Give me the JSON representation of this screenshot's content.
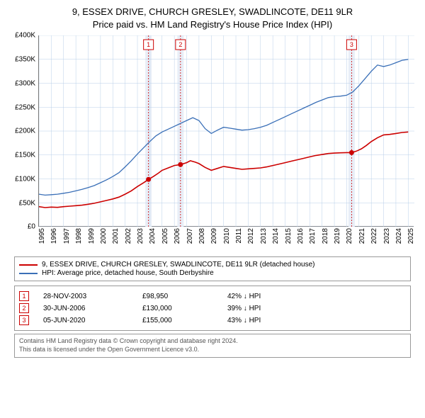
{
  "title_line1": "9, ESSEX DRIVE, CHURCH GRESLEY, SWADLINCOTE, DE11 9LR",
  "title_line2": "Price paid vs. HM Land Registry's House Price Index (HPI)",
  "chart": {
    "type": "line",
    "background_color": "#ffffff",
    "grid_color": "#b8cfe8",
    "grid_width": 0.5,
    "x_range": [
      1995,
      2025.5
    ],
    "y_range": [
      0,
      400000
    ],
    "y_ticks": [
      {
        "v": 0,
        "label": "£0"
      },
      {
        "v": 50000,
        "label": "£50K"
      },
      {
        "v": 100000,
        "label": "£100K"
      },
      {
        "v": 150000,
        "label": "£150K"
      },
      {
        "v": 200000,
        "label": "£200K"
      },
      {
        "v": 250000,
        "label": "£250K"
      },
      {
        "v": 300000,
        "label": "£300K"
      },
      {
        "v": 350000,
        "label": "£350K"
      },
      {
        "v": 400000,
        "label": "£400K"
      }
    ],
    "x_ticks": [
      1995,
      1996,
      1997,
      1998,
      1999,
      2000,
      2001,
      2002,
      2003,
      2004,
      2005,
      2006,
      2007,
      2008,
      2009,
      2010,
      2011,
      2012,
      2013,
      2014,
      2015,
      2016,
      2017,
      2018,
      2019,
      2020,
      2021,
      2022,
      2023,
      2024,
      2025
    ],
    "markers": [
      {
        "n": "1",
        "x": 2003.9,
        "y": 98950,
        "color": "#cc0000"
      },
      {
        "n": "2",
        "x": 2006.5,
        "y": 130000,
        "color": "#cc0000"
      },
      {
        "n": "3",
        "x": 2020.4,
        "y": 155000,
        "color": "#cc0000"
      }
    ],
    "marker_band_color": "#e8eef7",
    "marker_line_color": "#cc0000",
    "series": [
      {
        "name": "property",
        "color": "#cc0000",
        "width": 1.6,
        "points": [
          [
            1995.0,
            42000
          ],
          [
            1995.5,
            40000
          ],
          [
            1996.0,
            41000
          ],
          [
            1996.5,
            40500
          ],
          [
            1997.0,
            42000
          ],
          [
            1997.5,
            43000
          ],
          [
            1998.0,
            44000
          ],
          [
            1998.5,
            45000
          ],
          [
            1999.0,
            47000
          ],
          [
            1999.5,
            49000
          ],
          [
            2000.0,
            52000
          ],
          [
            2000.5,
            55000
          ],
          [
            2001.0,
            58000
          ],
          [
            2001.5,
            62000
          ],
          [
            2002.0,
            68000
          ],
          [
            2002.5,
            75000
          ],
          [
            2003.0,
            84000
          ],
          [
            2003.5,
            92000
          ],
          [
            2003.9,
            98950
          ],
          [
            2004.3,
            105000
          ],
          [
            2004.7,
            112000
          ],
          [
            2005.0,
            118000
          ],
          [
            2005.5,
            123000
          ],
          [
            2006.0,
            128000
          ],
          [
            2006.5,
            130000
          ],
          [
            2007.0,
            134000
          ],
          [
            2007.3,
            138000
          ],
          [
            2007.7,
            135000
          ],
          [
            2008.0,
            132000
          ],
          [
            2008.5,
            124000
          ],
          [
            2009.0,
            118000
          ],
          [
            2009.5,
            122000
          ],
          [
            2010.0,
            126000
          ],
          [
            2010.5,
            124000
          ],
          [
            2011.0,
            122000
          ],
          [
            2011.5,
            120000
          ],
          [
            2012.0,
            121000
          ],
          [
            2012.5,
            122000
          ],
          [
            2013.0,
            123000
          ],
          [
            2013.5,
            125000
          ],
          [
            2014.0,
            128000
          ],
          [
            2014.5,
            131000
          ],
          [
            2015.0,
            134000
          ],
          [
            2015.5,
            137000
          ],
          [
            2016.0,
            140000
          ],
          [
            2016.5,
            143000
          ],
          [
            2017.0,
            146000
          ],
          [
            2017.5,
            149000
          ],
          [
            2018.0,
            151000
          ],
          [
            2018.5,
            153000
          ],
          [
            2019.0,
            154000
          ],
          [
            2019.5,
            154500
          ],
          [
            2020.0,
            155000
          ],
          [
            2020.4,
            155000
          ],
          [
            2020.8,
            158000
          ],
          [
            2021.2,
            163000
          ],
          [
            2021.6,
            170000
          ],
          [
            2022.0,
            178000
          ],
          [
            2022.5,
            186000
          ],
          [
            2023.0,
            192000
          ],
          [
            2023.5,
            193000
          ],
          [
            2024.0,
            195000
          ],
          [
            2024.5,
            197000
          ],
          [
            2025.0,
            198000
          ]
        ]
      },
      {
        "name": "hpi",
        "color": "#3a6fb7",
        "width": 1.3,
        "points": [
          [
            1995.0,
            68000
          ],
          [
            1995.5,
            66000
          ],
          [
            1996.0,
            67000
          ],
          [
            1996.5,
            68000
          ],
          [
            1997.0,
            70000
          ],
          [
            1997.5,
            72000
          ],
          [
            1998.0,
            75000
          ],
          [
            1998.5,
            78000
          ],
          [
            1999.0,
            82000
          ],
          [
            1999.5,
            86000
          ],
          [
            2000.0,
            92000
          ],
          [
            2000.5,
            98000
          ],
          [
            2001.0,
            105000
          ],
          [
            2001.5,
            113000
          ],
          [
            2002.0,
            125000
          ],
          [
            2002.5,
            138000
          ],
          [
            2003.0,
            152000
          ],
          [
            2003.5,
            165000
          ],
          [
            2004.0,
            178000
          ],
          [
            2004.5,
            190000
          ],
          [
            2005.0,
            198000
          ],
          [
            2005.5,
            204000
          ],
          [
            2006.0,
            210000
          ],
          [
            2006.5,
            216000
          ],
          [
            2007.0,
            222000
          ],
          [
            2007.5,
            228000
          ],
          [
            2008.0,
            222000
          ],
          [
            2008.5,
            205000
          ],
          [
            2009.0,
            195000
          ],
          [
            2009.5,
            202000
          ],
          [
            2010.0,
            208000
          ],
          [
            2010.5,
            206000
          ],
          [
            2011.0,
            204000
          ],
          [
            2011.5,
            202000
          ],
          [
            2012.0,
            203000
          ],
          [
            2012.5,
            205000
          ],
          [
            2013.0,
            208000
          ],
          [
            2013.5,
            212000
          ],
          [
            2014.0,
            218000
          ],
          [
            2014.5,
            224000
          ],
          [
            2015.0,
            230000
          ],
          [
            2015.5,
            236000
          ],
          [
            2016.0,
            242000
          ],
          [
            2016.5,
            248000
          ],
          [
            2017.0,
            254000
          ],
          [
            2017.5,
            260000
          ],
          [
            2018.0,
            265000
          ],
          [
            2018.5,
            270000
          ],
          [
            2019.0,
            272000
          ],
          [
            2019.5,
            273000
          ],
          [
            2020.0,
            275000
          ],
          [
            2020.5,
            282000
          ],
          [
            2021.0,
            295000
          ],
          [
            2021.5,
            310000
          ],
          [
            2022.0,
            325000
          ],
          [
            2022.5,
            338000
          ],
          [
            2023.0,
            335000
          ],
          [
            2023.5,
            338000
          ],
          [
            2024.0,
            343000
          ],
          [
            2024.5,
            348000
          ],
          [
            2025.0,
            350000
          ]
        ]
      }
    ]
  },
  "legend": [
    {
      "color": "#cc0000",
      "label": "9, ESSEX DRIVE, CHURCH GRESLEY, SWADLINCOTE, DE11 9LR (detached house)"
    },
    {
      "color": "#3a6fb7",
      "label": "HPI: Average price, detached house, South Derbyshire"
    }
  ],
  "sales": [
    {
      "n": "1",
      "date": "28-NOV-2003",
      "price": "£98,950",
      "diff": "42% ↓ HPI",
      "color": "#cc0000"
    },
    {
      "n": "2",
      "date": "30-JUN-2006",
      "price": "£130,000",
      "diff": "39% ↓ HPI",
      "color": "#cc0000"
    },
    {
      "n": "3",
      "date": "05-JUN-2020",
      "price": "£155,000",
      "diff": "43% ↓ HPI",
      "color": "#cc0000"
    }
  ],
  "footer_line1": "Contains HM Land Registry data © Crown copyright and database right 2024.",
  "footer_line2": "This data is licensed under the Open Government Licence v3.0."
}
